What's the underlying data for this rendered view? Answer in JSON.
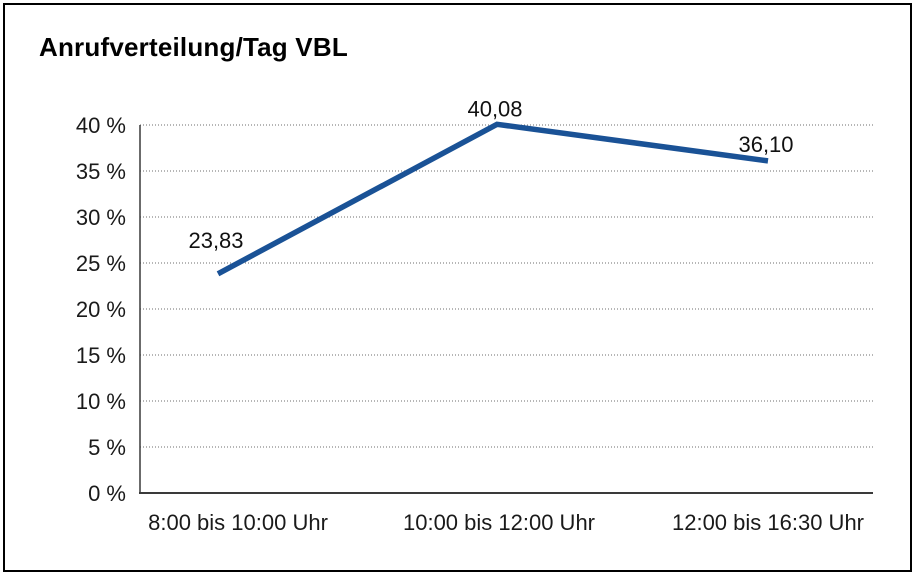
{
  "chart_data": {
    "type": "line",
    "title": "Anrufverteilung/Tag VBL",
    "categories": [
      "8:00 bis 10:00 Uhr",
      "10:00 bis 12:00 Uhr",
      "12:00 bis 16:30 Uhr"
    ],
    "series": [
      {
        "name": "Anrufverteilung/Tag VBL",
        "values": [
          23.83,
          40.08,
          36.1
        ],
        "point_labels": [
          "23,83",
          "40,08",
          "36,10"
        ]
      }
    ],
    "xlabel": "",
    "ylabel": "",
    "ylim": [
      0,
      40
    ],
    "y_tick_step": 5,
    "y_tick_labels": [
      "0 %",
      "5 %",
      "10 %",
      "15 %",
      "20 %",
      "25 %",
      "30 %",
      "35 %",
      "40 %"
    ],
    "grid": "horizontal-dotted",
    "legend": "none",
    "colors": {
      "line": "#1A5296",
      "axis": "#3A3A3A",
      "grid": "#6E6E6E",
      "text": "#1A1A1A",
      "border": "#000000",
      "background": "#FFFFFF"
    }
  }
}
